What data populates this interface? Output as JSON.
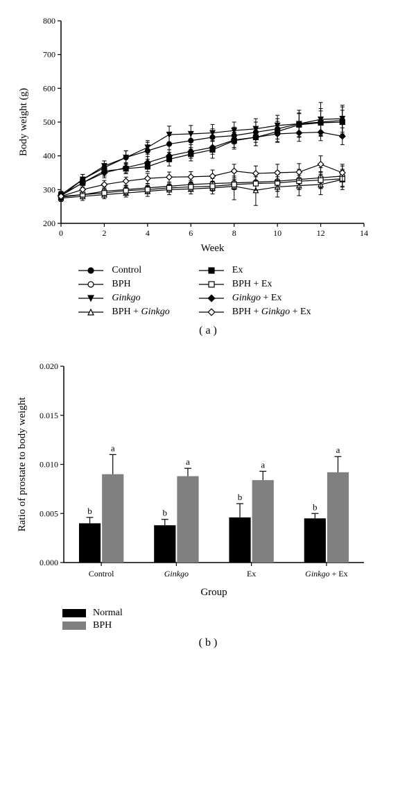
{
  "chart_a": {
    "type": "line",
    "xlabel": "Week",
    "ylabel": "Body weight (g)",
    "label_fontsize": 15,
    "tick_fontsize": 12,
    "xlim": [
      0,
      14
    ],
    "ylim": [
      200,
      800
    ],
    "xticks": [
      0,
      2,
      4,
      6,
      8,
      10,
      12,
      14
    ],
    "yticks": [
      200,
      300,
      400,
      500,
      600,
      700,
      800
    ],
    "background_color": "#ffffff",
    "axis_color": "#000000",
    "tick_length": 5,
    "line_color": "#000000",
    "line_width": 1.2,
    "marker_size": 5,
    "error_color": "#000000",
    "series": [
      {
        "name": "Control",
        "marker": "circle",
        "fill": "#000000",
        "x": [
          0,
          1,
          2,
          3,
          4,
          5,
          6,
          7,
          8,
          9,
          10,
          11,
          12,
          13
        ],
        "y": [
          280,
          330,
          365,
          395,
          415,
          435,
          445,
          455,
          460,
          470,
          480,
          495,
          500,
          505
        ],
        "err": [
          10,
          15,
          20,
          20,
          25,
          25,
          25,
          25,
          25,
          30,
          30,
          30,
          40,
          40
        ]
      },
      {
        "name": "BPH",
        "marker": "circle",
        "fill": "#ffffff",
        "x": [
          0,
          1,
          2,
          3,
          4,
          5,
          6,
          7,
          8,
          9,
          10,
          11,
          12,
          13
        ],
        "y": [
          280,
          285,
          295,
          300,
          305,
          310,
          315,
          318,
          320,
          322,
          325,
          330,
          335,
          340
        ],
        "err": [
          10,
          12,
          12,
          12,
          12,
          12,
          12,
          15,
          20,
          25,
          30,
          30,
          30,
          30
        ]
      },
      {
        "name": "Ginkgo",
        "marker": "triangle-down",
        "fill": "#000000",
        "x": [
          0,
          1,
          2,
          3,
          4,
          5,
          6,
          7,
          8,
          9,
          10,
          11,
          12,
          13
        ],
        "y": [
          285,
          330,
          370,
          395,
          425,
          463,
          465,
          468,
          475,
          480,
          490,
          495,
          508,
          510
        ],
        "err": [
          10,
          15,
          15,
          20,
          20,
          25,
          25,
          25,
          25,
          30,
          30,
          40,
          50,
          40
        ]
      },
      {
        "name": "BPH + Ginkgo",
        "marker": "triangle-up",
        "fill": "#ffffff",
        "x": [
          0,
          1,
          2,
          3,
          4,
          5,
          6,
          7,
          8,
          9,
          10,
          11,
          12,
          13
        ],
        "y": [
          275,
          280,
          285,
          290,
          295,
          300,
          302,
          305,
          310,
          298,
          308,
          312,
          315,
          330
        ],
        "err": [
          10,
          12,
          12,
          12,
          15,
          15,
          15,
          18,
          40,
          45,
          30,
          30,
          30,
          30
        ]
      },
      {
        "name": "Ex",
        "marker": "square",
        "fill": "#000000",
        "x": [
          0,
          1,
          2,
          3,
          4,
          5,
          6,
          7,
          8,
          9,
          10,
          11,
          12,
          13
        ],
        "y": [
          282,
          320,
          355,
          362,
          368,
          390,
          405,
          418,
          445,
          455,
          472,
          492,
          498,
          500
        ],
        "err": [
          10,
          15,
          15,
          15,
          15,
          20,
          20,
          25,
          25,
          25,
          30,
          35,
          35,
          35
        ]
      },
      {
        "name": "BPH + Ex",
        "marker": "square",
        "fill": "#ffffff",
        "x": [
          0,
          1,
          2,
          3,
          4,
          5,
          6,
          7,
          8,
          9,
          10,
          11,
          12,
          13
        ],
        "y": [
          278,
          285,
          290,
          297,
          300,
          305,
          308,
          310,
          315,
          318,
          320,
          325,
          328,
          332
        ],
        "err": [
          10,
          12,
          12,
          12,
          12,
          12,
          12,
          15,
          15,
          20,
          25,
          25,
          25,
          25
        ]
      },
      {
        "name": "Ginkgo + Ex",
        "marker": "diamond",
        "fill": "#000000",
        "x": [
          0,
          1,
          2,
          3,
          4,
          5,
          6,
          7,
          8,
          9,
          10,
          11,
          12,
          13
        ],
        "y": [
          283,
          320,
          350,
          365,
          380,
          400,
          413,
          425,
          447,
          455,
          465,
          468,
          470,
          458
        ],
        "err": [
          10,
          12,
          15,
          15,
          18,
          18,
          20,
          20,
          22,
          25,
          25,
          25,
          25,
          25
        ]
      },
      {
        "name": "BPH + Ginkgo + Ex",
        "marker": "diamond",
        "fill": "#ffffff",
        "x": [
          0,
          1,
          2,
          3,
          4,
          5,
          6,
          7,
          8,
          9,
          10,
          11,
          12,
          13
        ],
        "y": [
          280,
          300,
          315,
          325,
          333,
          337,
          338,
          340,
          355,
          348,
          350,
          352,
          375,
          350
        ],
        "err": [
          10,
          12,
          12,
          12,
          15,
          15,
          15,
          18,
          20,
          22,
          25,
          25,
          25,
          25
        ]
      }
    ],
    "legend": {
      "col1": [
        {
          "label": "Control",
          "marker": "circle",
          "fill": "#000000",
          "style": ""
        },
        {
          "label": "BPH",
          "marker": "circle",
          "fill": "#ffffff",
          "style": ""
        },
        {
          "label": "Ginkgo",
          "marker": "triangle-down",
          "fill": "#000000",
          "style": "italic"
        },
        {
          "label": "BPH + Ginkgo",
          "marker": "triangle-up",
          "fill": "#ffffff",
          "prefix": "BPH + ",
          "italic": "Ginkgo"
        }
      ],
      "col2": [
        {
          "label": "Ex",
          "marker": "square",
          "fill": "#000000",
          "style": ""
        },
        {
          "label": "BPH + Ex",
          "marker": "square",
          "fill": "#ffffff",
          "style": ""
        },
        {
          "label": "Ginkgo + Ex",
          "marker": "diamond",
          "fill": "#000000",
          "italic": "Ginkgo",
          "suffix": " + Ex"
        },
        {
          "label": "BPH + Ginkgo + Ex",
          "marker": "diamond",
          "fill": "#ffffff",
          "prefix": "BPH + ",
          "italic": "Ginkgo",
          "suffix": " + Ex"
        }
      ]
    },
    "caption": "( a )"
  },
  "chart_b": {
    "type": "bar",
    "xlabel": "Group",
    "ylabel": "Ratio of prostate to body weight",
    "label_fontsize": 15,
    "tick_fontsize": 12,
    "ylim": [
      0,
      0.02
    ],
    "yticks": [
      0.0,
      0.005,
      0.01,
      0.015,
      0.02
    ],
    "bar_colors": {
      "Normal": "#000000",
      "BPH": "#808080"
    },
    "background_color": "#ffffff",
    "axis_color": "#000000",
    "bar_width": 0.36,
    "groups": [
      {
        "name": "Control",
        "italic": false,
        "bars": [
          {
            "series": "Normal",
            "value": 0.004,
            "err": 0.0006,
            "sig": "b"
          },
          {
            "series": "BPH",
            "value": 0.009,
            "err": 0.002,
            "sig": "a"
          }
        ]
      },
      {
        "name": "Ginkgo",
        "italic": true,
        "bars": [
          {
            "series": "Normal",
            "value": 0.0038,
            "err": 0.0006,
            "sig": "b"
          },
          {
            "series": "BPH",
            "value": 0.0088,
            "err": 0.0008,
            "sig": "a"
          }
        ]
      },
      {
        "name": "Ex",
        "italic": false,
        "bars": [
          {
            "series": "Normal",
            "value": 0.0046,
            "err": 0.0014,
            "sig": "b"
          },
          {
            "series": "BPH",
            "value": 0.0084,
            "err": 0.0009,
            "sig": "a"
          }
        ]
      },
      {
        "name": "Ginkgo + Ex",
        "italic_part": "Ginkgo",
        "suffix": " + Ex",
        "bars": [
          {
            "series": "Normal",
            "value": 0.0045,
            "err": 0.0005,
            "sig": "b"
          },
          {
            "series": "BPH",
            "value": 0.0092,
            "err": 0.0016,
            "sig": "a"
          }
        ]
      }
    ],
    "legend": [
      {
        "label": "Normal",
        "color": "#000000"
      },
      {
        "label": "BPH",
        "color": "#808080"
      }
    ],
    "caption": "( b )"
  }
}
